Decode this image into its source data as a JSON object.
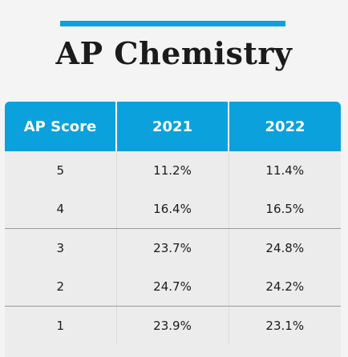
{
  "header": {
    "title": "AP Chemistry",
    "accent_color": "#0aa1dc"
  },
  "chart_data": {
    "type": "table",
    "title": "AP Chemistry",
    "columns": [
      "AP Score",
      "2021",
      "2022"
    ],
    "rows": [
      {
        "score": "5",
        "y2021": "11.2%",
        "y2022": "11.4%"
      },
      {
        "score": "4",
        "y2021": "16.4%",
        "y2022": "16.5%"
      },
      {
        "score": "3",
        "y2021": "23.7%",
        "y2022": "24.8%"
      },
      {
        "score": "2",
        "y2021": "24.7%",
        "y2022": "24.2%"
      },
      {
        "score": "1",
        "y2021": "23.9%",
        "y2022": "23.1%"
      }
    ]
  }
}
